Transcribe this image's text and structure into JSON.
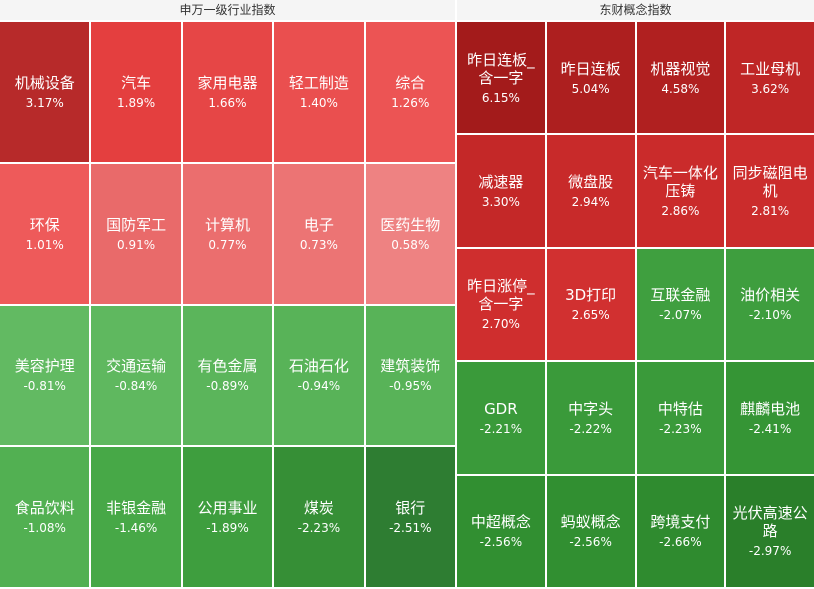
{
  "left": {
    "title": "申万一级行业指数",
    "tiles": [
      {
        "name": "机械设备",
        "change": "3.17%",
        "color": "#b72a2a"
      },
      {
        "name": "汽车",
        "change": "1.89%",
        "color": "#e43f3f"
      },
      {
        "name": "家用电器",
        "change": "1.66%",
        "color": "#e64646"
      },
      {
        "name": "轻工制造",
        "change": "1.40%",
        "color": "#ea4f4f"
      },
      {
        "name": "综合",
        "change": "1.26%",
        "color": "#ec5454"
      },
      {
        "name": "环保",
        "change": "1.01%",
        "color": "#ee5a5a"
      },
      {
        "name": "国防军工",
        "change": "0.91%",
        "color": "#e96a6a"
      },
      {
        "name": "计算机",
        "change": "0.77%",
        "color": "#eb6e6e"
      },
      {
        "name": "电子",
        "change": "0.73%",
        "color": "#ec7474"
      },
      {
        "name": "医药生物",
        "change": "0.58%",
        "color": "#ee8282"
      },
      {
        "name": "美容护理",
        "change": "-0.81%",
        "color": "#62ba62"
      },
      {
        "name": "交通运输",
        "change": "-0.84%",
        "color": "#5fb85f"
      },
      {
        "name": "有色金属",
        "change": "-0.89%",
        "color": "#5bb55b"
      },
      {
        "name": "石油石化",
        "change": "-0.94%",
        "color": "#58b358"
      },
      {
        "name": "建筑装饰",
        "change": "-0.95%",
        "color": "#58b358"
      },
      {
        "name": "食品饮料",
        "change": "-1.08%",
        "color": "#52b052"
      },
      {
        "name": "非银金融",
        "change": "-1.46%",
        "color": "#47a847"
      },
      {
        "name": "公用事业",
        "change": "-1.89%",
        "color": "#3e9e3e"
      },
      {
        "name": "煤炭",
        "change": "-2.23%",
        "color": "#368f36"
      },
      {
        "name": "银行",
        "change": "-2.51%",
        "color": "#2e7d32"
      }
    ]
  },
  "right": {
    "title": "东财概念指数",
    "tiles": [
      {
        "name": "昨日连板_含一字",
        "change": "6.15%",
        "color": "#a31b1b"
      },
      {
        "name": "昨日连板",
        "change": "5.04%",
        "color": "#ad1f1f"
      },
      {
        "name": "机器视觉",
        "change": "4.58%",
        "color": "#b02020"
      },
      {
        "name": "工业母机",
        "change": "3.62%",
        "color": "#bf2626"
      },
      {
        "name": "减速器",
        "change": "3.30%",
        "color": "#c42828"
      },
      {
        "name": "微盘股",
        "change": "2.94%",
        "color": "#c82a2a"
      },
      {
        "name": "汽车一体化压铸",
        "change": "2.86%",
        "color": "#ca2b2b"
      },
      {
        "name": "同步磁阻电机",
        "change": "2.81%",
        "color": "#cb2c2c"
      },
      {
        "name": "昨日涨停_含一字",
        "change": "2.70%",
        "color": "#cf2e2e"
      },
      {
        "name": "3D打印",
        "change": "2.65%",
        "color": "#d13030"
      },
      {
        "name": "互联金融",
        "change": "-2.07%",
        "color": "#3f9f3f"
      },
      {
        "name": "油价相关",
        "change": "-2.10%",
        "color": "#3e9e3e"
      },
      {
        "name": "GDR",
        "change": "-2.21%",
        "color": "#3a9a3a"
      },
      {
        "name": "中字头",
        "change": "-2.22%",
        "color": "#3a9a3a"
      },
      {
        "name": "中特估",
        "change": "-2.23%",
        "color": "#3a9a3a"
      },
      {
        "name": "麒麟电池",
        "change": "-2.41%",
        "color": "#359535"
      },
      {
        "name": "中超概念",
        "change": "-2.56%",
        "color": "#318f31"
      },
      {
        "name": "蚂蚁概念",
        "change": "-2.56%",
        "color": "#318f31"
      },
      {
        "name": "跨境支付",
        "change": "-2.66%",
        "color": "#2f8b2f"
      },
      {
        "name": "光伏高速公路",
        "change": "-2.97%",
        "color": "#2a7f2a"
      }
    ]
  }
}
